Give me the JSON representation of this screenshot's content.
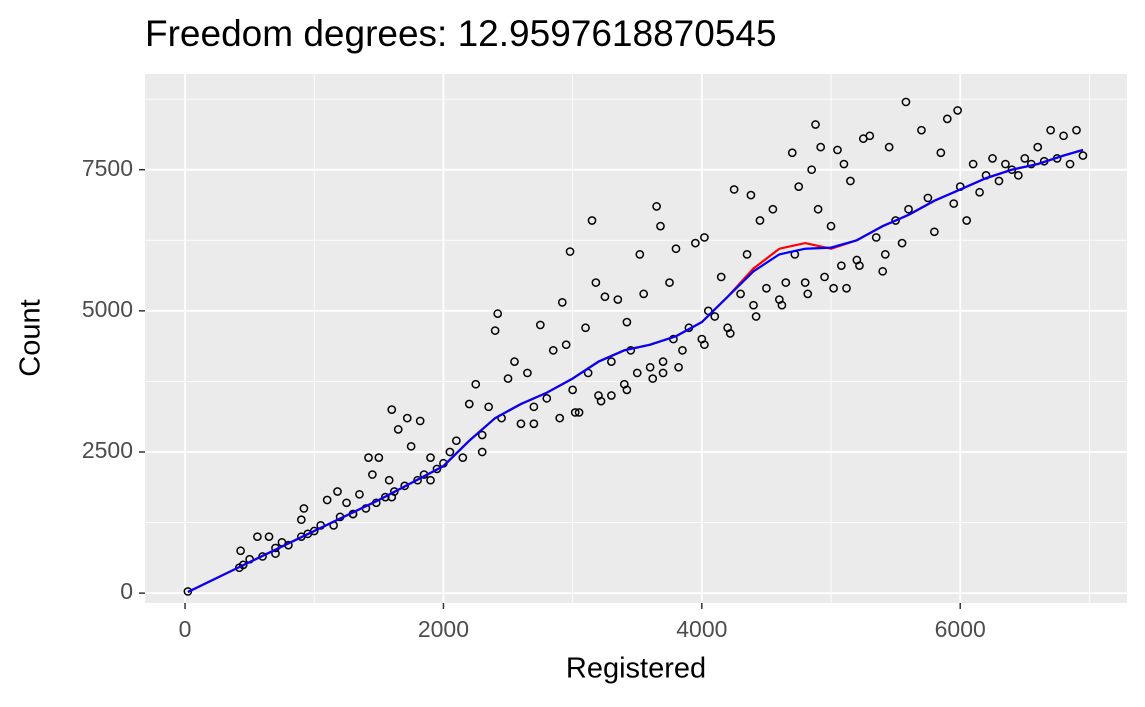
{
  "chart_data": {
    "type": "scatter",
    "title": "Freedom degrees: 12.9597618870545",
    "x_label": "Registered",
    "y_label": "Count",
    "xlim": [
      -310,
      7291
    ],
    "ylim": [
      -175,
      9195
    ],
    "xticks": [
      0,
      2000,
      4000,
      6000
    ],
    "yticks": [
      0,
      2500,
      5000,
      7500
    ],
    "x_minor_ticks": [
      1000,
      3000,
      5000,
      7000
    ],
    "y_minor_ticks": [
      1250,
      3750,
      6250,
      8750
    ],
    "grid": true,
    "series": [
      {
        "type": "scatter",
        "color": "#000000",
        "x": [
          22,
          420,
          430,
          450,
          500,
          560,
          600,
          650,
          700,
          700,
          750,
          800,
          900,
          900,
          920,
          950,
          1000,
          1050,
          1100,
          1150,
          1180,
          1200,
          1250,
          1300,
          1350,
          1400,
          1420,
          1450,
          1480,
          1500,
          1550,
          1580,
          1600,
          1620,
          1650,
          1700,
          1720,
          1750,
          1800,
          1820,
          1850,
          1900,
          1950,
          2000,
          2050,
          2100,
          2150,
          2200,
          2250,
          2300,
          2350,
          2400,
          2420,
          2450,
          2500,
          2550,
          2600,
          2650,
          2700,
          2750,
          2800,
          2850,
          2900,
          2920,
          2950,
          2980,
          3000,
          3050,
          3100,
          3120,
          3150,
          3180,
          3200,
          3250,
          3300,
          3350,
          3400,
          3420,
          3450,
          3500,
          3520,
          3550,
          3600,
          3650,
          3680,
          3700,
          3750,
          3780,
          3800,
          3850,
          3900,
          3950,
          4000,
          4020,
          4050,
          4100,
          4150,
          4200,
          4250,
          4300,
          4350,
          4380,
          4400,
          4450,
          4500,
          4550,
          4600,
          4650,
          4700,
          4720,
          4750,
          4800,
          4850,
          4880,
          4900,
          4920,
          4950,
          5000,
          5050,
          5080,
          5100,
          5120,
          5150,
          5200,
          5250,
          5300,
          5350,
          5400,
          5450,
          5500,
          5550,
          5580,
          5600,
          5700,
          5750,
          5800,
          5850,
          5900,
          5950,
          5980,
          6000,
          6050,
          6100,
          6150,
          6200,
          6250,
          6300,
          6350,
          6400,
          6450,
          6500,
          6550,
          6600,
          6650,
          6700,
          6750,
          6800,
          6850,
          6900,
          6950,
          3020,
          3220,
          3420,
          3620,
          3820,
          4020,
          4220,
          4420,
          4620,
          4820,
          5020,
          5220,
          5420,
          1300,
          1600,
          1900,
          2300,
          2700,
          3300,
          3700
        ],
        "values": [
          30,
          450,
          750,
          500,
          600,
          1000,
          650,
          1000,
          700,
          800,
          900,
          850,
          1000,
          1300,
          1500,
          1050,
          1100,
          1200,
          1650,
          1200,
          1800,
          1350,
          1600,
          1400,
          1750,
          1500,
          2400,
          2100,
          1600,
          2400,
          1700,
          2000,
          3250,
          1800,
          2900,
          1900,
          3100,
          2600,
          2000,
          3050,
          2100,
          2400,
          2200,
          2300,
          2500,
          2700,
          2400,
          3350,
          3700,
          2800,
          3300,
          4650,
          4950,
          3100,
          3800,
          4100,
          3000,
          3900,
          3300,
          4750,
          3450,
          4300,
          3100,
          5150,
          4400,
          6050,
          3600,
          3200,
          4700,
          3900,
          6600,
          5500,
          3500,
          5250,
          4100,
          5200,
          3700,
          4800,
          4300,
          3900,
          6000,
          5300,
          4000,
          6850,
          6500,
          4100,
          5500,
          4500,
          6100,
          4300,
          4700,
          6200,
          4500,
          6300,
          5000,
          4900,
          5600,
          4700,
          7150,
          5300,
          6000,
          7050,
          5100,
          6600,
          5400,
          6800,
          5200,
          5500,
          7800,
          6000,
          7200,
          5500,
          7500,
          8300,
          6800,
          7900,
          5600,
          6500,
          7850,
          5800,
          7600,
          5400,
          7300,
          5900,
          8050,
          8100,
          6300,
          5700,
          7900,
          6600,
          6200,
          8700,
          6800,
          8200,
          7000,
          6400,
          7800,
          8400,
          6900,
          8550,
          7200,
          6600,
          7600,
          7100,
          7400,
          7700,
          7300,
          7600,
          7500,
          7400,
          7700,
          7600,
          7900,
          7650,
          8200,
          7700,
          8100,
          7600,
          8200,
          7750,
          3200,
          3400,
          3600,
          3800,
          4000,
          4400,
          4600,
          4900,
          5100,
          5300,
          5400,
          5800,
          6000,
          1400,
          1700,
          2000,
          2500,
          3000,
          3500,
          3900
        ]
      },
      {
        "type": "line",
        "color": "#ff0000",
        "x": [
          22,
          500,
          1000,
          1500,
          2000,
          2200,
          2400,
          2600,
          2800,
          3000,
          3200,
          3400,
          3600,
          3800,
          4000,
          4200,
          4400,
          4600,
          4800,
          5000,
          5200,
          5400,
          5600,
          5800,
          6000,
          6200,
          6400,
          6600,
          6800,
          6950
        ],
        "values": [
          20,
          550,
          1100,
          1650,
          2250,
          2700,
          3100,
          3350,
          3550,
          3800,
          4100,
          4300,
          4400,
          4550,
          4800,
          5250,
          5750,
          6100,
          6200,
          6100,
          6250,
          6500,
          6700,
          6950,
          7150,
          7350,
          7500,
          7600,
          7750,
          7850
        ]
      },
      {
        "type": "line",
        "color": "#0000ff",
        "x": [
          22,
          500,
          1000,
          1500,
          2000,
          2200,
          2400,
          2600,
          2800,
          3000,
          3200,
          3400,
          3600,
          3800,
          4000,
          4200,
          4400,
          4600,
          4800,
          5000,
          5200,
          5400,
          5600,
          5800,
          6000,
          6200,
          6400,
          6600,
          6800,
          6950
        ],
        "values": [
          20,
          550,
          1100,
          1650,
          2250,
          2700,
          3100,
          3350,
          3550,
          3800,
          4100,
          4300,
          4400,
          4550,
          4800,
          5250,
          5700,
          6000,
          6100,
          6120,
          6250,
          6500,
          6700,
          6950,
          7150,
          7350,
          7500,
          7600,
          7750,
          7850
        ]
      }
    ]
  }
}
